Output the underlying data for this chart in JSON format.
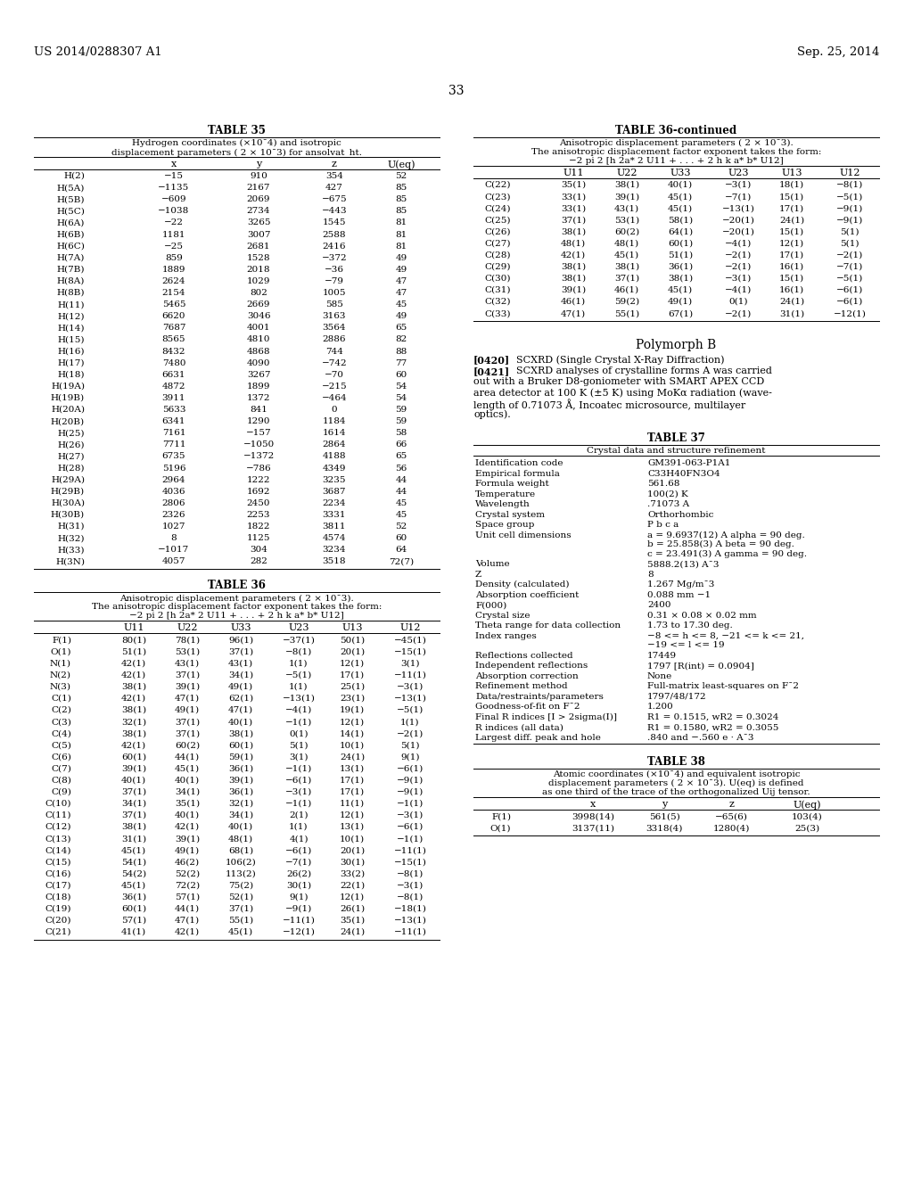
{
  "header_left": "US 2014/0288307 A1",
  "header_right": "Sep. 25, 2014",
  "page_number": "33",
  "bg_color": "#ffffff",
  "table35_title": "TABLE 35",
  "table35_subtitle1": "Hydrogen coordinates (×10¯4) and isotropic",
  "table35_subtitle2": "displacement parameters ( 2 × 10¯3) for ansolvat_ht.",
  "table35_cols": [
    "",
    "x",
    "y",
    "z",
    "U(eq)"
  ],
  "table35_data": [
    [
      "H(2)",
      "−15",
      "910",
      "354",
      "52"
    ],
    [
      "H(5A)",
      "−1135",
      "2167",
      "427",
      "85"
    ],
    [
      "H(5B)",
      "−609",
      "2069",
      "−675",
      "85"
    ],
    [
      "H(5C)",
      "−1038",
      "2734",
      "−443",
      "85"
    ],
    [
      "H(6A)",
      "−22",
      "3265",
      "1545",
      "81"
    ],
    [
      "H(6B)",
      "1181",
      "3007",
      "2588",
      "81"
    ],
    [
      "H(6C)",
      "−25",
      "2681",
      "2416",
      "81"
    ],
    [
      "H(7A)",
      "859",
      "1528",
      "−372",
      "49"
    ],
    [
      "H(7B)",
      "1889",
      "2018",
      "−36",
      "49"
    ],
    [
      "H(8A)",
      "2624",
      "1029",
      "−79",
      "47"
    ],
    [
      "H(8B)",
      "2154",
      "802",
      "1005",
      "47"
    ],
    [
      "H(11)",
      "5465",
      "2669",
      "585",
      "45"
    ],
    [
      "H(12)",
      "6620",
      "3046",
      "3163",
      "49"
    ],
    [
      "H(14)",
      "7687",
      "4001",
      "3564",
      "65"
    ],
    [
      "H(15)",
      "8565",
      "4810",
      "2886",
      "82"
    ],
    [
      "H(16)",
      "8432",
      "4868",
      "744",
      "88"
    ],
    [
      "H(17)",
      "7480",
      "4090",
      "−742",
      "77"
    ],
    [
      "H(18)",
      "6631",
      "3267",
      "−70",
      "60"
    ],
    [
      "H(19A)",
      "4872",
      "1899",
      "−215",
      "54"
    ],
    [
      "H(19B)",
      "3911",
      "1372",
      "−464",
      "54"
    ],
    [
      "H(20A)",
      "5633",
      "841",
      "0",
      "59"
    ],
    [
      "H(20B)",
      "6341",
      "1290",
      "1184",
      "59"
    ],
    [
      "H(25)",
      "7161",
      "−157",
      "1614",
      "58"
    ],
    [
      "H(26)",
      "7711",
      "−1050",
      "2864",
      "66"
    ],
    [
      "H(27)",
      "6735",
      "−1372",
      "4188",
      "65"
    ],
    [
      "H(28)",
      "5196",
      "−786",
      "4349",
      "56"
    ],
    [
      "H(29A)",
      "2964",
      "1222",
      "3235",
      "44"
    ],
    [
      "H(29B)",
      "4036",
      "1692",
      "3687",
      "44"
    ],
    [
      "H(30A)",
      "2806",
      "2450",
      "2234",
      "45"
    ],
    [
      "H(30B)",
      "2326",
      "2253",
      "3331",
      "45"
    ],
    [
      "H(31)",
      "1027",
      "1822",
      "3811",
      "52"
    ],
    [
      "H(32)",
      "8",
      "1125",
      "4574",
      "60"
    ],
    [
      "H(33)",
      "−1017",
      "304",
      "3234",
      "64"
    ],
    [
      "H(3N)",
      "4057",
      "282",
      "3518",
      "72(7)"
    ]
  ],
  "table36_title": "TABLE 36",
  "table36_subtitle1": "Anisotropic displacement parameters ( 2 × 10¯3).",
  "table36_subtitle2": "The anisotropic displacement factor exponent takes the form:",
  "table36_subtitle3": "−2 pi 2 [h 2a* 2 U11 + . . . + 2 h k a* b* U12]",
  "table36_cols": [
    "",
    "U11",
    "U22",
    "U33",
    "U23",
    "U13",
    "U12"
  ],
  "table36_data": [
    [
      "F(1)",
      "80(1)",
      "78(1)",
      "96(1)",
      "−37(1)",
      "50(1)",
      "−45(1)"
    ],
    [
      "O(1)",
      "51(1)",
      "53(1)",
      "37(1)",
      "−8(1)",
      "20(1)",
      "−15(1)"
    ],
    [
      "N(1)",
      "42(1)",
      "43(1)",
      "43(1)",
      "1(1)",
      "12(1)",
      "3(1)"
    ],
    [
      "N(2)",
      "42(1)",
      "37(1)",
      "34(1)",
      "−5(1)",
      "17(1)",
      "−11(1)"
    ],
    [
      "N(3)",
      "38(1)",
      "39(1)",
      "49(1)",
      "1(1)",
      "25(1)",
      "−3(1)"
    ],
    [
      "C(1)",
      "42(1)",
      "47(1)",
      "62(1)",
      "−13(1)",
      "23(1)",
      "−13(1)"
    ],
    [
      "C(2)",
      "38(1)",
      "49(1)",
      "47(1)",
      "−4(1)",
      "19(1)",
      "−5(1)"
    ],
    [
      "C(3)",
      "32(1)",
      "37(1)",
      "40(1)",
      "−1(1)",
      "12(1)",
      "1(1)"
    ],
    [
      "C(4)",
      "38(1)",
      "37(1)",
      "38(1)",
      "0(1)",
      "14(1)",
      "−2(1)"
    ],
    [
      "C(5)",
      "42(1)",
      "60(2)",
      "60(1)",
      "5(1)",
      "10(1)",
      "5(1)"
    ],
    [
      "C(6)",
      "60(1)",
      "44(1)",
      "59(1)",
      "3(1)",
      "24(1)",
      "9(1)"
    ],
    [
      "C(7)",
      "39(1)",
      "45(1)",
      "36(1)",
      "−1(1)",
      "13(1)",
      "−6(1)"
    ],
    [
      "C(8)",
      "40(1)",
      "40(1)",
      "39(1)",
      "−6(1)",
      "17(1)",
      "−9(1)"
    ],
    [
      "C(9)",
      "37(1)",
      "34(1)",
      "36(1)",
      "−3(1)",
      "17(1)",
      "−9(1)"
    ],
    [
      "C(10)",
      "34(1)",
      "35(1)",
      "32(1)",
      "−1(1)",
      "11(1)",
      "−1(1)"
    ],
    [
      "C(11)",
      "37(1)",
      "40(1)",
      "34(1)",
      "2(1)",
      "12(1)",
      "−3(1)"
    ],
    [
      "C(12)",
      "38(1)",
      "42(1)",
      "40(1)",
      "1(1)",
      "13(1)",
      "−6(1)"
    ],
    [
      "C(13)",
      "31(1)",
      "39(1)",
      "48(1)",
      "4(1)",
      "10(1)",
      "−1(1)"
    ],
    [
      "C(14)",
      "45(1)",
      "49(1)",
      "68(1)",
      "−6(1)",
      "20(1)",
      "−11(1)"
    ],
    [
      "C(15)",
      "54(1)",
      "46(2)",
      "106(2)",
      "−7(1)",
      "30(1)",
      "−15(1)"
    ],
    [
      "C(16)",
      "54(2)",
      "52(2)",
      "113(2)",
      "26(2)",
      "33(2)",
      "−8(1)"
    ],
    [
      "C(17)",
      "45(1)",
      "72(2)",
      "75(2)",
      "30(1)",
      "22(1)",
      "−3(1)"
    ],
    [
      "C(18)",
      "36(1)",
      "57(1)",
      "52(1)",
      "9(1)",
      "12(1)",
      "−8(1)"
    ],
    [
      "C(19)",
      "60(1)",
      "44(1)",
      "37(1)",
      "−9(1)",
      "26(1)",
      "−18(1)"
    ],
    [
      "C(20)",
      "57(1)",
      "47(1)",
      "55(1)",
      "−11(1)",
      "35(1)",
      "−13(1)"
    ],
    [
      "C(21)",
      "41(1)",
      "42(1)",
      "45(1)",
      "−12(1)",
      "24(1)",
      "−11(1)"
    ]
  ],
  "table36cont_title": "TABLE 36-continued",
  "table36cont_subtitle1": "Anisotropic displacement parameters ( 2 × 10¯3).",
  "table36cont_subtitle2": "The anisotropic displacement factor exponent takes the form:",
  "table36cont_subtitle3": "−2 pi 2 [h 2a* 2 U11 + . . . + 2 h k a* b* U12]",
  "table36cont_cols": [
    "",
    "U11",
    "U22",
    "U33",
    "U23",
    "U13",
    "U12"
  ],
  "table36cont_data": [
    [
      "C(22)",
      "35(1)",
      "38(1)",
      "40(1)",
      "−3(1)",
      "18(1)",
      "−8(1)"
    ],
    [
      "C(23)",
      "33(1)",
      "39(1)",
      "45(1)",
      "−7(1)",
      "15(1)",
      "−5(1)"
    ],
    [
      "C(24)",
      "33(1)",
      "43(1)",
      "45(1)",
      "−13(1)",
      "17(1)",
      "−9(1)"
    ],
    [
      "C(25)",
      "37(1)",
      "53(1)",
      "58(1)",
      "−20(1)",
      "24(1)",
      "−9(1)"
    ],
    [
      "C(26)",
      "38(1)",
      "60(2)",
      "64(1)",
      "−20(1)",
      "15(1)",
      "5(1)"
    ],
    [
      "C(27)",
      "48(1)",
      "48(1)",
      "60(1)",
      "−4(1)",
      "12(1)",
      "5(1)"
    ],
    [
      "C(28)",
      "42(1)",
      "45(1)",
      "51(1)",
      "−2(1)",
      "17(1)",
      "−2(1)"
    ],
    [
      "C(29)",
      "38(1)",
      "38(1)",
      "36(1)",
      "−2(1)",
      "16(1)",
      "−7(1)"
    ],
    [
      "C(30)",
      "38(1)",
      "37(1)",
      "38(1)",
      "−3(1)",
      "15(1)",
      "−5(1)"
    ],
    [
      "C(31)",
      "39(1)",
      "46(1)",
      "45(1)",
      "−4(1)",
      "16(1)",
      "−6(1)"
    ],
    [
      "C(32)",
      "46(1)",
      "59(2)",
      "49(1)",
      "0(1)",
      "24(1)",
      "−6(1)"
    ],
    [
      "C(33)",
      "47(1)",
      "55(1)",
      "67(1)",
      "−2(1)",
      "31(1)",
      "−12(1)"
    ]
  ],
  "polymorphB_title": "Polymorph B",
  "polymorphB_para0420": "[0420]",
  "polymorphB_text420": "SCXRD (Single Crystal X-Ray Diffraction)",
  "polymorphB_para0421": "[0421]",
  "polymorphB_text421_lines": [
    "SCXRD analyses of crystalline forms A was carried",
    "out with a Bruker D8-goniometer with SMART APEX CCD",
    "area detector at 100 K (±5 K) using MoKα radiation (wave-",
    "length of 0.71073 Å, Incoatec microsource, multilayer",
    "optics)."
  ],
  "table37_title": "TABLE 37",
  "table37_subtitle": "Crystal data and structure refinement",
  "table37_data": [
    [
      "Identification code",
      "GM391-063-P1A1"
    ],
    [
      "Empirical formula",
      "C33H40FN3O4"
    ],
    [
      "Formula weight",
      "561.68"
    ],
    [
      "Temperature",
      "100(2) K"
    ],
    [
      "Wavelength",
      ".71073 A"
    ],
    [
      "Crystal system",
      "Orthorhombic"
    ],
    [
      "Space group",
      "P b c a"
    ],
    [
      "Unit cell dimensions",
      "a = 9.6937(12) A alpha = 90 deg.",
      "b = 25.858(3) A beta = 90 deg.",
      "c = 23.491(3) A gamma = 90 deg."
    ],
    [
      "Volume",
      "5888.2(13) A¯3"
    ],
    [
      "Z",
      "8"
    ],
    [
      "Density (calculated)",
      "1.267 Mg/m¯3"
    ],
    [
      "Absorption coefficient",
      "0.088 mm −1"
    ],
    [
      "F(000)",
      "2400"
    ],
    [
      "Crystal size",
      "0.31 × 0.08 × 0.02 mm"
    ],
    [
      "Theta range for data collection",
      "1.73 to 17.30 deg."
    ],
    [
      "Index ranges",
      "−8 <= h <= 8, −21 <= k <= 21,",
      "−19 <= l <= 19"
    ],
    [
      "Reflections collected",
      "17449"
    ],
    [
      "Independent reflections",
      "1797 [R(int) = 0.0904]"
    ],
    [
      "Absorption correction",
      "None"
    ],
    [
      "Refinement method",
      "Full-matrix least-squares on F¯2"
    ],
    [
      "Data/restraints/parameters",
      "1797/48/172"
    ],
    [
      "Goodness-of-fit on F¯2",
      "1.200"
    ],
    [
      "Final R indices [I > 2sigma(I)]",
      "R1 = 0.1515, wR2 = 0.3024"
    ],
    [
      "R indices (all data)",
      "R1 = 0.1580, wR2 = 0.3055"
    ],
    [
      "Largest diff. peak and hole",
      ".840 and −.560 e · A¯3"
    ]
  ],
  "table38_title": "TABLE 38",
  "table38_subtitle1": "Atomic coordinates (×10¯4) and equivalent isotropic",
  "table38_subtitle2": "displacement parameters ( 2 × 10¯3). U(eq) is defined",
  "table38_subtitle3": "as one third of the trace of the orthogonalized Uij tensor.",
  "table38_cols": [
    "",
    "x",
    "y",
    "z",
    "U(eq)"
  ],
  "table38_data": [
    [
      "F(1)",
      "3998(14)",
      "561(5)",
      "−65(6)",
      "103(4)"
    ],
    [
      "O(1)",
      "3137(11)",
      "3318(4)",
      "1280(4)",
      "25(3)"
    ]
  ]
}
